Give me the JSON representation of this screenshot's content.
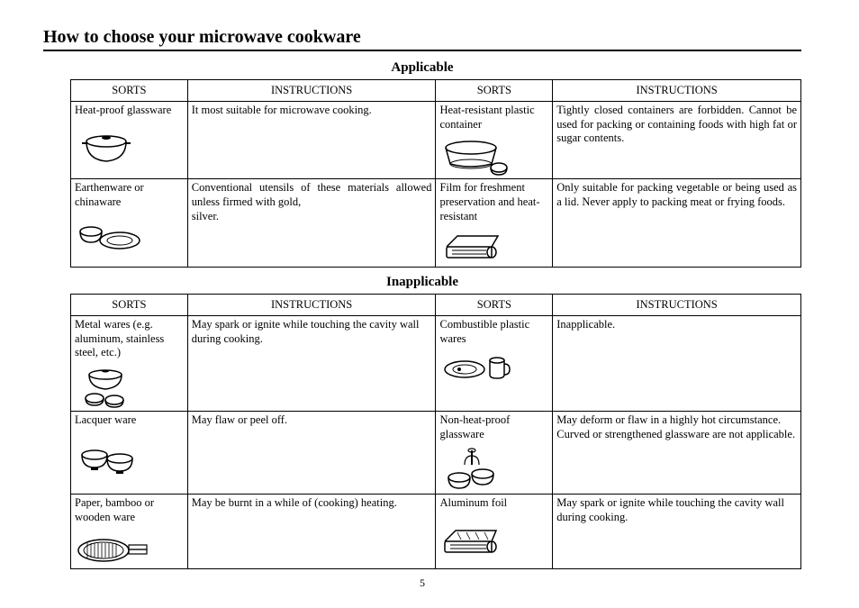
{
  "title": "How to choose your microwave cookware",
  "page_number": "5",
  "sections": [
    {
      "heading": "Applicable",
      "headers": {
        "sorts": "SORTS",
        "instructions": "INSTRUCTIONS"
      },
      "rows": [
        {
          "left_sort": "Heat-proof glassware",
          "left_icon": "pot-icon",
          "left_instr": "It most suitable for microwave cooking.",
          "left_justify": true,
          "right_sort": "Heat-resistant plastic container",
          "right_icon": "container-icon",
          "right_instr": "Tightly closed containers are forbidden. Cannot be used for packing or containing foods with high fat or sugar contents.",
          "right_justify": true
        },
        {
          "left_sort": "Earthenware or chinaware",
          "left_icon": "bowls-plate-icon",
          "left_instr": "Conventional utensils of these materials allowed unless firmed with gold,\nsilver.",
          "left_justify": true,
          "right_sort": "Film for freshment preservation and heat-resistant",
          "right_icon": "film-roll-icon",
          "right_instr": "Only suitable for packing vegetable or being used as a lid. Never apply to packing meat or frying foods.",
          "right_justify": true
        }
      ]
    },
    {
      "heading": "Inapplicable",
      "headers": {
        "sorts": "SORTS",
        "instructions": "INSTRUCTIONS"
      },
      "rows": [
        {
          "left_sort": "Metal wares (e.g. aluminum, stainless steel, etc.)",
          "left_icon": "metal-pot-icon",
          "left_instr": "May spark or ignite while touching the cavity wall during cooking.",
          "left_justify": false,
          "right_sort": "Combustible plastic wares",
          "right_icon": "plate-cup-icon",
          "right_instr": "Inapplicable.",
          "right_justify": false
        },
        {
          "left_sort": "Lacquer ware",
          "left_icon": "lacquer-bowls-icon",
          "left_instr": "May flaw or peel off.",
          "left_justify": false,
          "right_sort": "Non-heat-proof glassware",
          "right_icon": "glassware-icon",
          "right_instr": "May deform or flaw in a highly hot circumstance. Curved or strengthened glassware are not applicable.",
          "right_justify": false
        },
        {
          "left_sort": "Paper, bamboo or wooden ware",
          "left_icon": "bamboo-tray-icon",
          "left_instr": "May be burnt in a while of (cooking) heating.",
          "left_justify": false,
          "right_sort": "Aluminum foil",
          "right_icon": "foil-roll-icon",
          "right_instr": "May spark or ignite while touching the cavity wall during cooking.",
          "right_justify": false
        }
      ]
    }
  ]
}
